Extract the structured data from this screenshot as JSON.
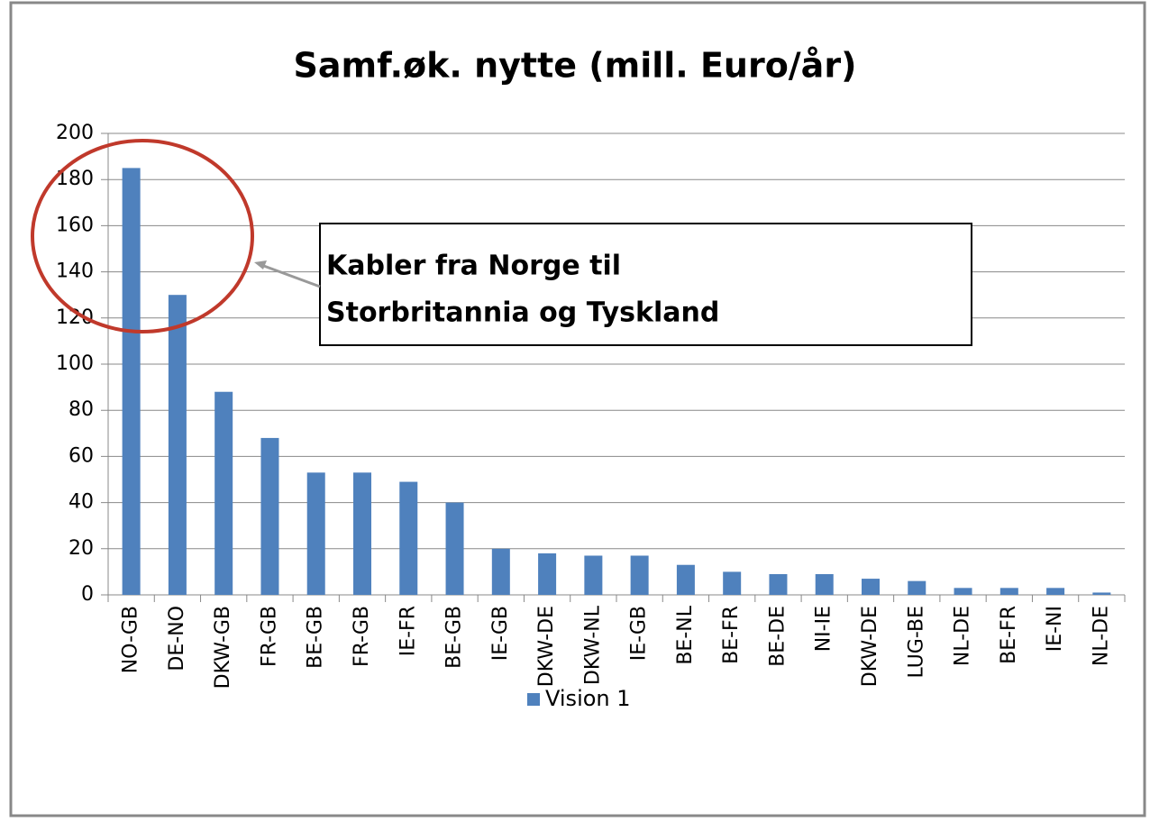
{
  "chart_data": {
    "type": "bar",
    "title": "Samf.øk. nytte (mill. Euro/år)",
    "categories": [
      "NO-GB",
      "DE-NO",
      "DKW-GB",
      "FR-GB",
      "BE-GB",
      "FR-GB",
      "IE-FR",
      "BE-GB",
      "IE-GB",
      "DKW-DE",
      "DKW-NL",
      "IE-GB",
      "BE-NL",
      "BE-FR",
      "BE-DE",
      "NI-IE",
      "DKW-DE",
      "LUG-BE",
      "NL-DE",
      "BE-FR",
      "IE-NI",
      "NL-DE"
    ],
    "series": [
      {
        "name": "Vision 1",
        "color": "#4f81bd",
        "values": [
          185,
          130,
          88,
          68,
          53,
          53,
          49,
          40,
          20,
          18,
          17,
          17,
          13,
          10,
          9,
          9,
          7,
          6,
          3,
          3,
          3,
          1
        ]
      }
    ],
    "ylim": [
      0,
      200
    ],
    "yticks": [
      0,
      20,
      40,
      60,
      80,
      100,
      120,
      140,
      160,
      180,
      200
    ],
    "grid": true,
    "legend": "bottom",
    "annotation": [
      "Kabler fra Norge til",
      "Storbritannia og Tyskland"
    ]
  }
}
